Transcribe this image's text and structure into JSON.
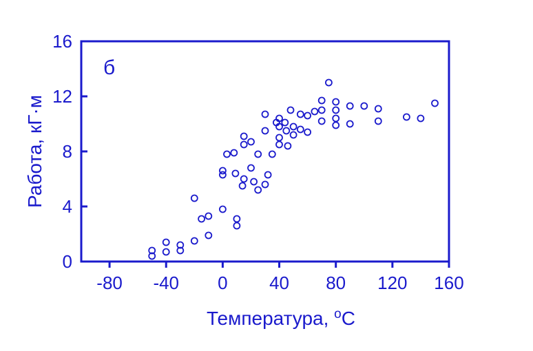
{
  "chart_data": {
    "type": "scatter",
    "panel_label": "б",
    "xlabel": "Температура, ",
    "xlabel_sup": "o",
    "xlabel_unit": "C",
    "ylabel": "Работа, кГ·м",
    "xlim": [
      -100,
      160
    ],
    "ylim": [
      0,
      16
    ],
    "x_ticks": [
      -80,
      -40,
      0,
      40,
      80,
      120,
      160
    ],
    "x_tick_labels": [
      "-80",
      "-40",
      "0",
      "40",
      "80",
      "120",
      "160"
    ],
    "y_ticks": [
      0,
      4,
      8,
      12,
      16
    ],
    "y_tick_labels": [
      "0",
      "4",
      "8",
      "12",
      "16"
    ],
    "grid": false,
    "color": "#1a1acc",
    "marker": "hollow-circle",
    "series": [
      {
        "points": [
          [
            -50,
            0.8
          ],
          [
            -50,
            0.4
          ],
          [
            -40,
            1.4
          ],
          [
            -40,
            0.7
          ],
          [
            -30,
            1.2
          ],
          [
            -30,
            0.8
          ],
          [
            -20,
            1.5
          ],
          [
            -20,
            4.6
          ],
          [
            -15,
            3.1
          ],
          [
            -10,
            3.3
          ],
          [
            -10,
            1.9
          ],
          [
            0,
            3.8
          ],
          [
            0,
            6.6
          ],
          [
            0,
            6.3
          ],
          [
            3,
            7.8
          ],
          [
            8,
            7.9
          ],
          [
            9,
            6.4
          ],
          [
            10,
            3.1
          ],
          [
            10,
            2.6
          ],
          [
            14,
            5.5
          ],
          [
            15,
            6.0
          ],
          [
            15,
            8.5
          ],
          [
            15,
            9.1
          ],
          [
            20,
            6.8
          ],
          [
            20,
            8.7
          ],
          [
            22,
            5.8
          ],
          [
            25,
            5.2
          ],
          [
            25,
            7.8
          ],
          [
            30,
            5.6
          ],
          [
            30,
            9.5
          ],
          [
            30,
            10.7
          ],
          [
            32,
            6.3
          ],
          [
            35,
            7.8
          ],
          [
            38,
            10.1
          ],
          [
            40,
            10.4
          ],
          [
            40,
            9.8
          ],
          [
            40,
            8.5
          ],
          [
            40,
            9.0
          ],
          [
            44,
            10.1
          ],
          [
            45,
            9.5
          ],
          [
            46,
            8.4
          ],
          [
            48,
            11.0
          ],
          [
            50,
            9.8
          ],
          [
            50,
            9.2
          ],
          [
            55,
            9.6
          ],
          [
            55,
            10.7
          ],
          [
            60,
            9.4
          ],
          [
            60,
            10.6
          ],
          [
            65,
            10.9
          ],
          [
            70,
            11.7
          ],
          [
            70,
            11.0
          ],
          [
            70,
            10.2
          ],
          [
            75,
            13.0
          ],
          [
            80,
            11.6
          ],
          [
            80,
            11.0
          ],
          [
            80,
            10.4
          ],
          [
            80,
            9.9
          ],
          [
            90,
            11.3
          ],
          [
            90,
            10.0
          ],
          [
            100,
            11.3
          ],
          [
            110,
            11.1
          ],
          [
            110,
            10.2
          ],
          [
            130,
            10.5
          ],
          [
            140,
            10.4
          ],
          [
            150,
            11.5
          ]
        ]
      }
    ]
  }
}
